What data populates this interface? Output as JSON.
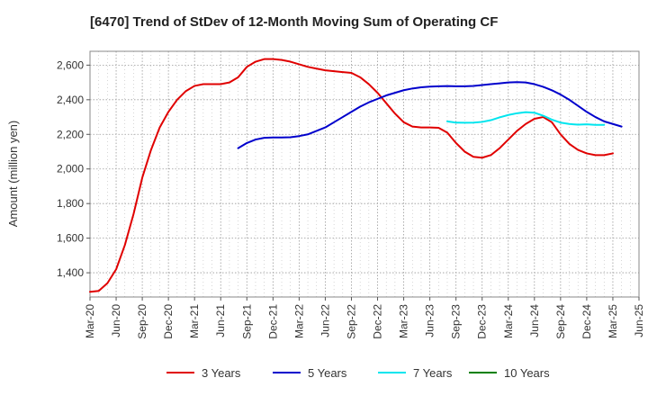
{
  "chart_data": {
    "type": "line",
    "title": "[6470]  Trend of StDev of 12-Month Moving Sum of Operating CF",
    "xlabel": "",
    "ylabel": "Amount (million yen)",
    "ylim": [
      1260,
      2680
    ],
    "y_ticks": [
      1400,
      1600,
      1800,
      2000,
      2200,
      2400,
      2600
    ],
    "y_tick_labels": [
      "1,400",
      "1,600",
      "1,800",
      "2,000",
      "2,200",
      "2,400",
      "2,600"
    ],
    "x_tick_labels": [
      "Mar-20",
      "Jun-20",
      "Sep-20",
      "Dec-20",
      "Mar-21",
      "Jun-21",
      "Sep-21",
      "Dec-21",
      "Mar-22",
      "Jun-22",
      "Sep-22",
      "Dec-22",
      "Mar-23",
      "Jun-23",
      "Sep-23",
      "Dec-23",
      "Mar-24",
      "Jun-24",
      "Sep-24",
      "Dec-24",
      "Mar-25",
      "Jun-25"
    ],
    "grid": true,
    "legend_position": "bottom",
    "series": [
      {
        "name": "3 Years",
        "color": "#e00000",
        "start": "Mar-20",
        "values": [
          1290,
          1295,
          1340,
          1420,
          1560,
          1740,
          1950,
          2110,
          2240,
          2330,
          2400,
          2450,
          2480,
          2490,
          2490,
          2490,
          2500,
          2530,
          2590,
          2620,
          2635,
          2635,
          2630,
          2620,
          2605,
          2590,
          2580,
          2570,
          2565,
          2560,
          2555,
          2530,
          2490,
          2440,
          2380,
          2320,
          2270,
          2245,
          2240,
          2240,
          2238,
          2210,
          2150,
          2100,
          2070,
          2065,
          2080,
          2120,
          2170,
          2220,
          2260,
          2290,
          2300,
          2270,
          2200,
          2145,
          2110,
          2090,
          2080,
          2080,
          2090
        ]
      },
      {
        "name": "5 Years",
        "color": "#0000cc",
        "start": "Aug-21",
        "values": [
          2120,
          2150,
          2170,
          2180,
          2182,
          2182,
          2183,
          2190,
          2200,
          2220,
          2240,
          2270,
          2300,
          2330,
          2360,
          2385,
          2405,
          2425,
          2440,
          2455,
          2465,
          2472,
          2476,
          2478,
          2479,
          2478,
          2478,
          2480,
          2485,
          2490,
          2495,
          2500,
          2502,
          2500,
          2490,
          2475,
          2455,
          2430,
          2400,
          2365,
          2330,
          2300,
          2275,
          2260,
          2245
        ]
      },
      {
        "name": "7 Years",
        "color": "#00e5ee",
        "start": "Aug-23",
        "values": [
          2275,
          2268,
          2267,
          2268,
          2272,
          2282,
          2298,
          2312,
          2322,
          2328,
          2325,
          2308,
          2285,
          2268,
          2260,
          2256,
          2258,
          2255,
          2255
        ]
      },
      {
        "name": "10 Years",
        "color": "#008000",
        "start": "Mar-25",
        "values": []
      }
    ]
  }
}
